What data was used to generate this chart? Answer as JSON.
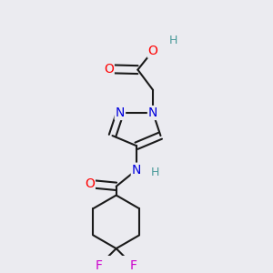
{
  "bg_color": "#ebebf0",
  "bond_color": "#1a1a1a",
  "bond_width": 1.5,
  "atom_colors": {
    "O": "#ff0000",
    "N": "#0000dd",
    "F": "#cc00cc",
    "H": "#4a9a9a",
    "C": "#1a1a1a"
  },
  "font_size": 9,
  "figsize": [
    3.0,
    3.0
  ],
  "dpi": 100
}
